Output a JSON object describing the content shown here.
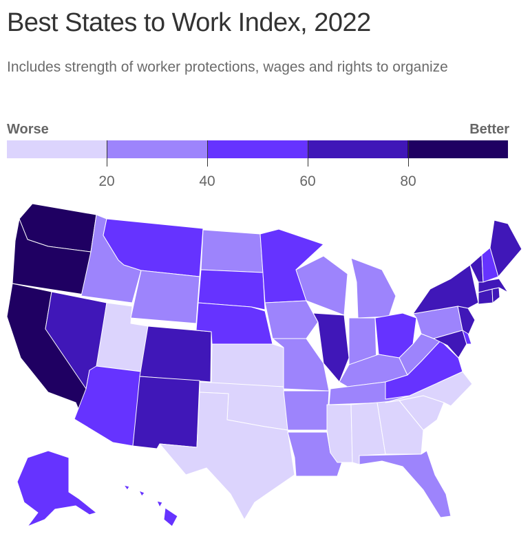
{
  "title": "Best States to Work Index, 2022",
  "subtitle": "Includes strength of worker protections, wages and rights to organize",
  "legend": {
    "low_label": "Worse",
    "high_label": "Better",
    "bins": [
      {
        "color": "#dcd4fd"
      },
      {
        "color": "#9d84fc"
      },
      {
        "color": "#6633ff"
      },
      {
        "color": "#4017b8"
      },
      {
        "color": "#1f0062"
      }
    ],
    "ticks": [
      "20",
      "40",
      "60",
      "80"
    ]
  },
  "map": {
    "states": [
      {
        "id": "WA",
        "bin": 4
      },
      {
        "id": "OR",
        "bin": 4
      },
      {
        "id": "CA",
        "bin": 4
      },
      {
        "id": "ID",
        "bin": 1
      },
      {
        "id": "NV",
        "bin": 3
      },
      {
        "id": "UT",
        "bin": 0
      },
      {
        "id": "AZ",
        "bin": 2
      },
      {
        "id": "MT",
        "bin": 2
      },
      {
        "id": "WY",
        "bin": 1
      },
      {
        "id": "CO",
        "bin": 3
      },
      {
        "id": "NM",
        "bin": 3
      },
      {
        "id": "ND",
        "bin": 1
      },
      {
        "id": "SD",
        "bin": 2
      },
      {
        "id": "NE",
        "bin": 2
      },
      {
        "id": "KS",
        "bin": 0
      },
      {
        "id": "OK",
        "bin": 0
      },
      {
        "id": "TX",
        "bin": 0
      },
      {
        "id": "MN",
        "bin": 2
      },
      {
        "id": "IA",
        "bin": 1
      },
      {
        "id": "MO",
        "bin": 1
      },
      {
        "id": "AR",
        "bin": 1
      },
      {
        "id": "LA",
        "bin": 1
      },
      {
        "id": "WI",
        "bin": 1
      },
      {
        "id": "IL",
        "bin": 3
      },
      {
        "id": "MI",
        "bin": 1
      },
      {
        "id": "IN",
        "bin": 1
      },
      {
        "id": "OH",
        "bin": 2
      },
      {
        "id": "KY",
        "bin": 1
      },
      {
        "id": "TN",
        "bin": 1
      },
      {
        "id": "MS",
        "bin": 0
      },
      {
        "id": "AL",
        "bin": 0
      },
      {
        "id": "GA",
        "bin": 0
      },
      {
        "id": "FL",
        "bin": 1
      },
      {
        "id": "SC",
        "bin": 0
      },
      {
        "id": "NC",
        "bin": 0
      },
      {
        "id": "VA",
        "bin": 2
      },
      {
        "id": "WV",
        "bin": 1
      },
      {
        "id": "PA",
        "bin": 1
      },
      {
        "id": "NY",
        "bin": 3
      },
      {
        "id": "NJ",
        "bin": 3
      },
      {
        "id": "MD",
        "bin": 3
      },
      {
        "id": "DE",
        "bin": 2
      },
      {
        "id": "CT",
        "bin": 3
      },
      {
        "id": "RI",
        "bin": 3
      },
      {
        "id": "MA",
        "bin": 3
      },
      {
        "id": "VT",
        "bin": 3
      },
      {
        "id": "NH",
        "bin": 2
      },
      {
        "id": "ME",
        "bin": 3
      },
      {
        "id": "AK",
        "bin": 2
      },
      {
        "id": "HI",
        "bin": 2
      }
    ]
  }
}
